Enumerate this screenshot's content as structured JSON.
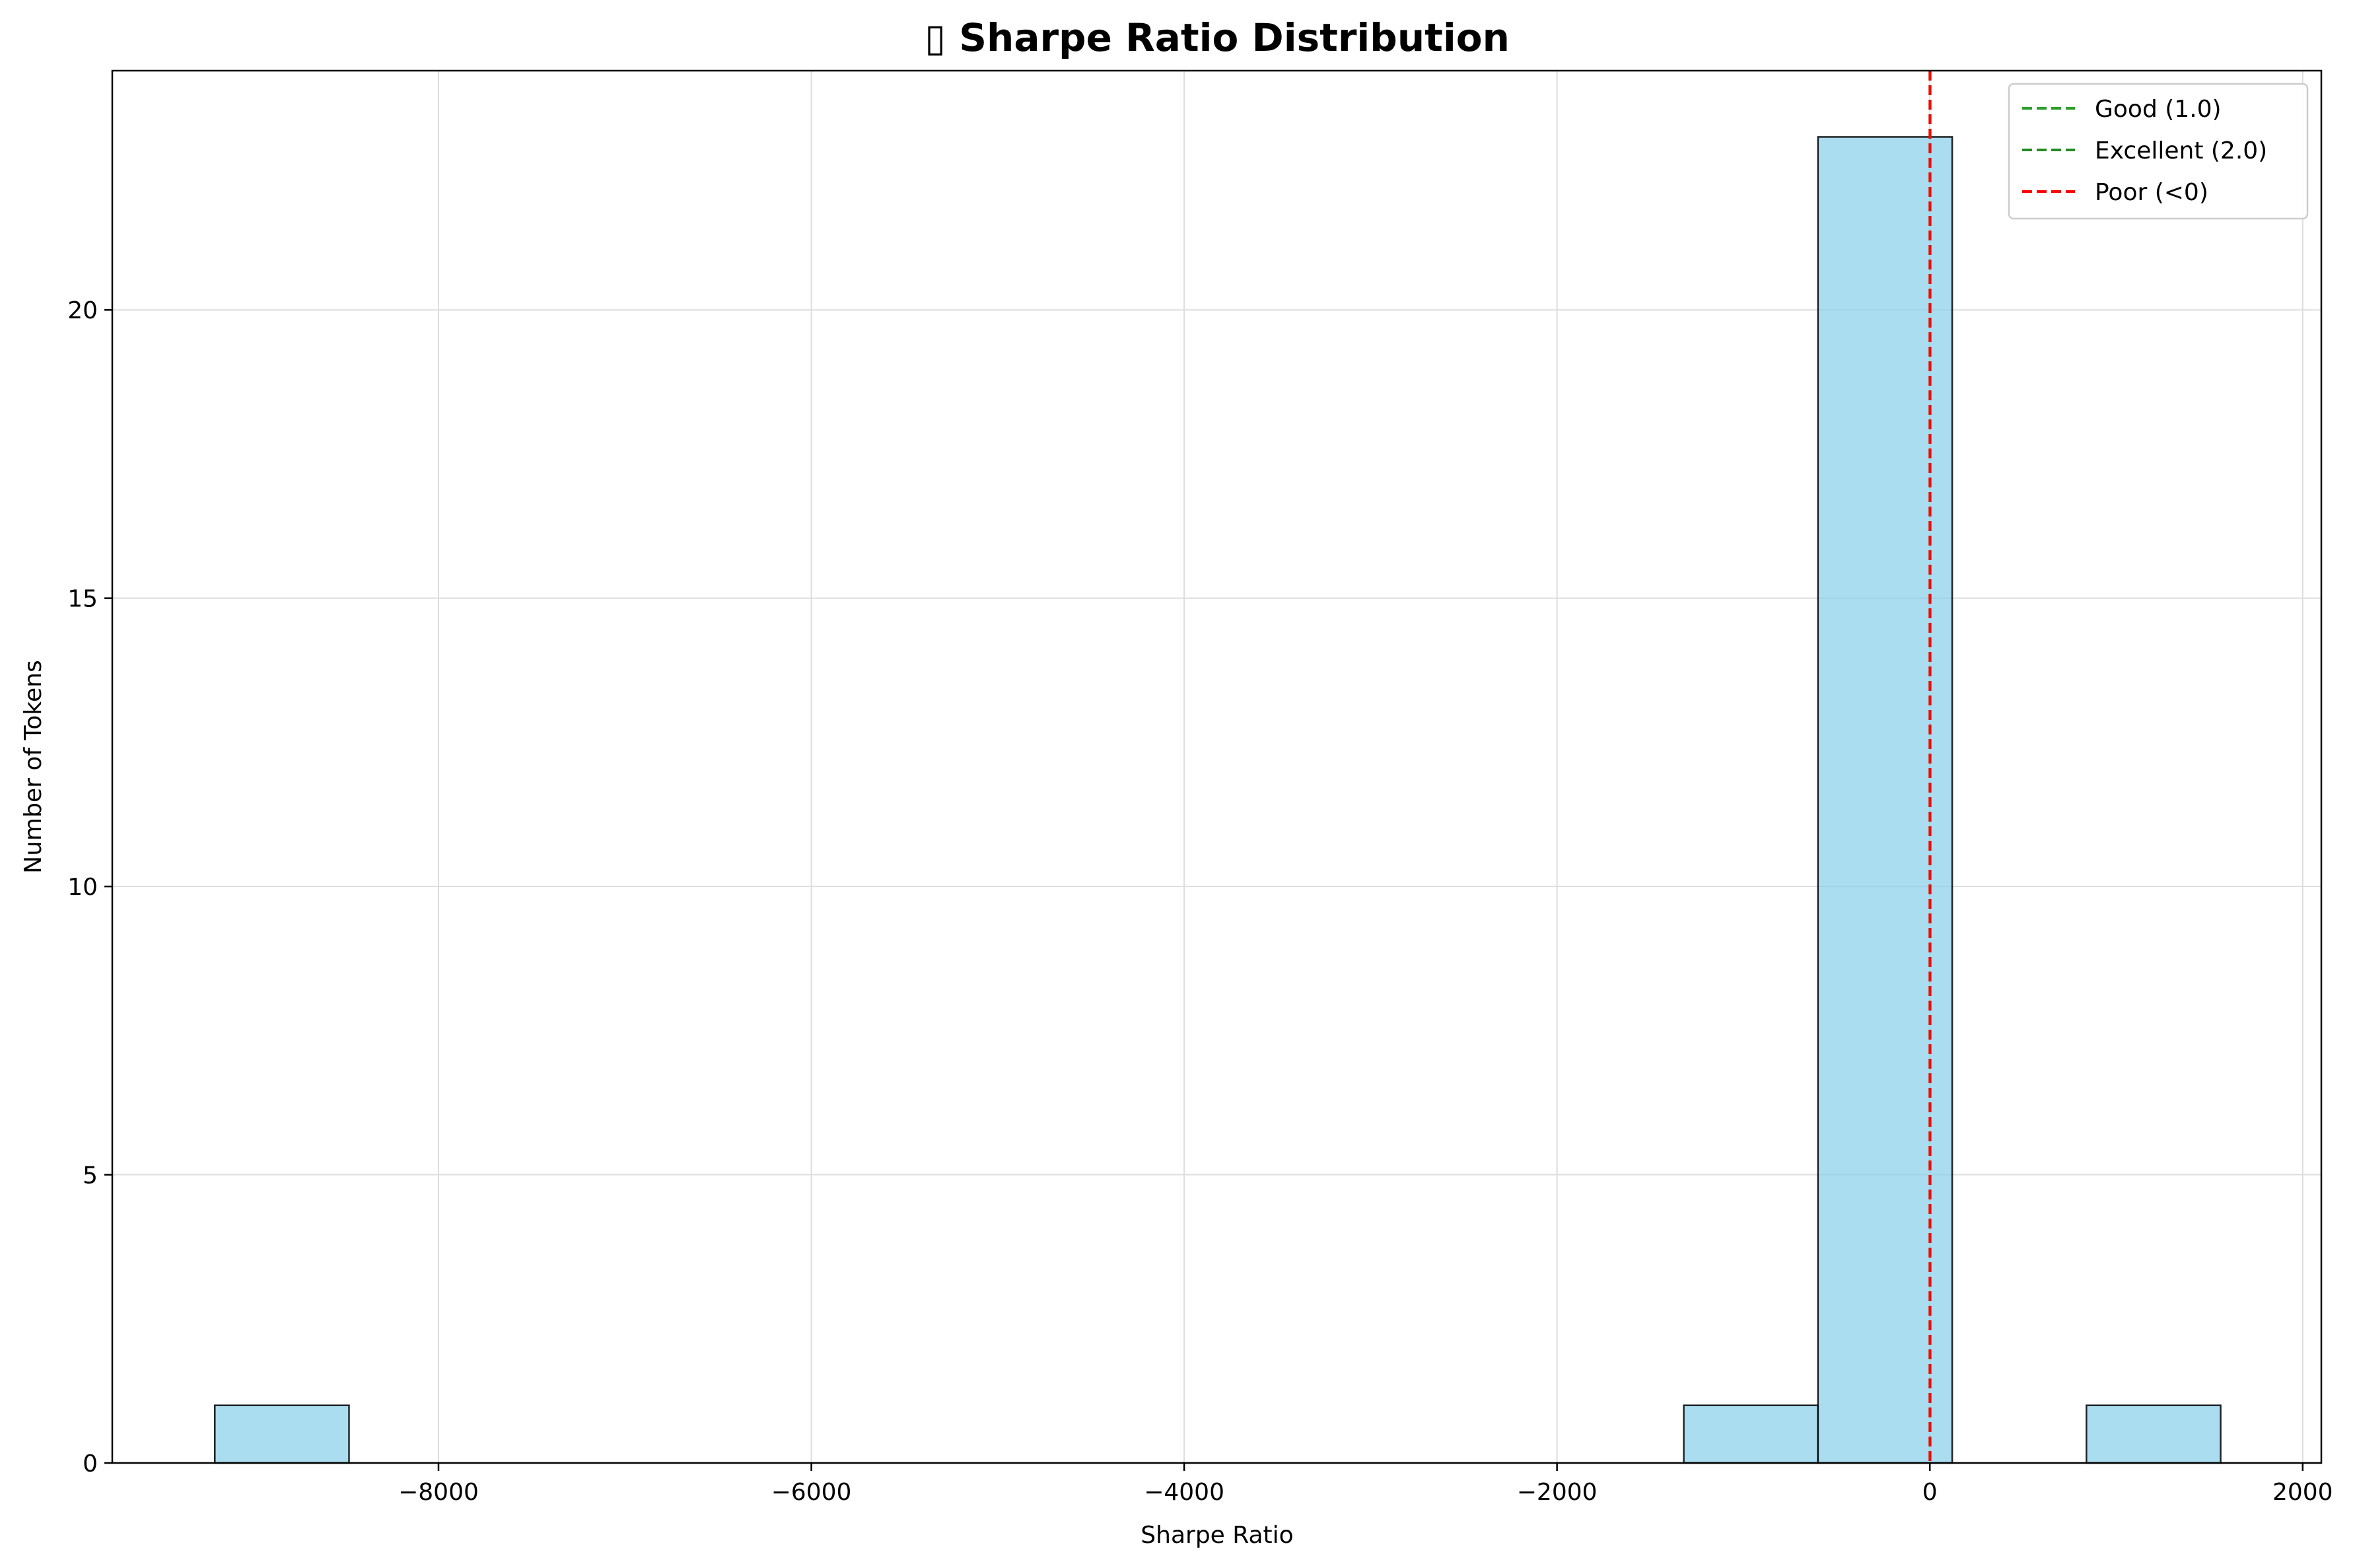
{
  "chart_data": {
    "type": "bar",
    "subtype": "histogram",
    "title": "▯ Sharpe Ratio Distribution",
    "xlabel": "Sharpe Ratio",
    "ylabel": "Number of Tokens",
    "xlim": [
      -9750,
      2100
    ],
    "ylim": [
      0,
      24.15
    ],
    "xticks": [
      -8000,
      -6000,
      -4000,
      -2000,
      0,
      2000
    ],
    "xtick_labels": [
      "−8000",
      "−6000",
      "−4000",
      "−2000",
      "0",
      "2000"
    ],
    "yticks": [
      0,
      5,
      10,
      15,
      20
    ],
    "ytick_labels": [
      "0",
      "5",
      "10",
      "15",
      "20"
    ],
    "grid": true,
    "bar_color": "#87ceeb",
    "bins": [
      {
        "x0": -9200,
        "x1": -8480,
        "count": 1
      },
      {
        "x0": -1320,
        "x1": -600,
        "count": 1
      },
      {
        "x0": -600,
        "x1": 120,
        "count": 23
      },
      {
        "x0": 840,
        "x1": 1560,
        "count": 1
      }
    ],
    "reference_lines": [
      {
        "label": "Good (1.0)",
        "x": 1.0,
        "color": "#2ca02c"
      },
      {
        "label": "Excellent (2.0)",
        "x": 2.0,
        "color": "#228b22"
      },
      {
        "label": "Poor (<0)",
        "x": 0,
        "color": "#ff0000"
      }
    ],
    "legend_position": "top-right"
  }
}
